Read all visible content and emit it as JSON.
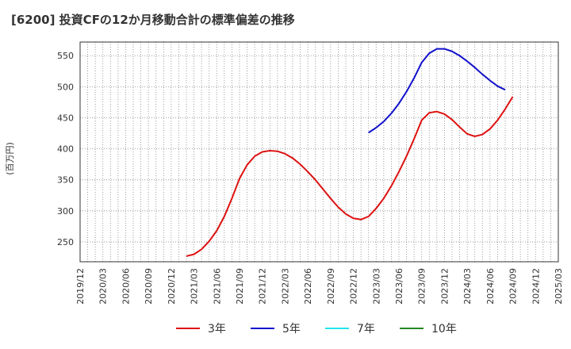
{
  "chart_data": {
    "type": "line",
    "title": "[6200]  投資CFの12か月移動合計の標準偏差の推移",
    "ylabel": "(百万円)",
    "xlabel": "",
    "x_ticks": [
      "2019/12",
      "2020/03",
      "2020/06",
      "2020/09",
      "2020/12",
      "2021/03",
      "2021/06",
      "2021/09",
      "2021/12",
      "2022/03",
      "2022/06",
      "2022/09",
      "2022/12",
      "2023/03",
      "2023/06",
      "2023/09",
      "2023/12",
      "2024/03",
      "2024/06",
      "2024/09",
      "2024/12",
      "2025/03"
    ],
    "y_ticks": [
      250,
      300,
      350,
      400,
      450,
      500,
      550
    ],
    "xlim": [
      "2019/12",
      "2025/03"
    ],
    "ylim": [
      218,
      572
    ],
    "grid": true,
    "legend_position": "bottom",
    "series": [
      {
        "name": "3年",
        "color": "#dd1111",
        "points": [
          [
            "2021/02",
            227
          ],
          [
            "2021/03",
            230
          ],
          [
            "2021/04",
            238
          ],
          [
            "2021/05",
            251
          ],
          [
            "2021/06",
            268
          ],
          [
            "2021/07",
            291
          ],
          [
            "2021/08",
            320
          ],
          [
            "2021/09",
            352
          ],
          [
            "2021/10",
            374
          ],
          [
            "2021/11",
            388
          ],
          [
            "2021/12",
            395
          ],
          [
            "2022/01",
            397
          ],
          [
            "2022/02",
            396
          ],
          [
            "2022/03",
            392
          ],
          [
            "2022/04",
            385
          ],
          [
            "2022/05",
            375
          ],
          [
            "2022/06",
            363
          ],
          [
            "2022/07",
            350
          ],
          [
            "2022/08",
            335
          ],
          [
            "2022/09",
            320
          ],
          [
            "2022/10",
            306
          ],
          [
            "2022/11",
            295
          ],
          [
            "2022/12",
            288
          ],
          [
            "2023/01",
            286
          ],
          [
            "2023/02",
            291
          ],
          [
            "2023/03",
            304
          ],
          [
            "2023/04",
            320
          ],
          [
            "2023/05",
            340
          ],
          [
            "2023/06",
            363
          ],
          [
            "2023/07",
            388
          ],
          [
            "2023/08",
            416
          ],
          [
            "2023/09",
            446
          ],
          [
            "2023/10",
            458
          ],
          [
            "2023/11",
            460
          ],
          [
            "2023/12",
            456
          ],
          [
            "2024/01",
            447
          ],
          [
            "2024/02",
            435
          ],
          [
            "2024/03",
            424
          ],
          [
            "2024/04",
            420
          ],
          [
            "2024/05",
            423
          ],
          [
            "2024/06",
            432
          ],
          [
            "2024/07",
            446
          ],
          [
            "2024/08",
            464
          ],
          [
            "2024/09",
            484
          ]
        ]
      },
      {
        "name": "5年",
        "color": "#1111cc",
        "points": [
          [
            "2023/02",
            426
          ],
          [
            "2023/03",
            434
          ],
          [
            "2023/04",
            444
          ],
          [
            "2023/05",
            457
          ],
          [
            "2023/06",
            473
          ],
          [
            "2023/07",
            492
          ],
          [
            "2023/08",
            514
          ],
          [
            "2023/09",
            539
          ],
          [
            "2023/10",
            554
          ],
          [
            "2023/11",
            561
          ],
          [
            "2023/12",
            561
          ],
          [
            "2024/01",
            557
          ],
          [
            "2024/02",
            550
          ],
          [
            "2024/03",
            541
          ],
          [
            "2024/04",
            531
          ],
          [
            "2024/05",
            520
          ],
          [
            "2024/06",
            510
          ],
          [
            "2024/07",
            501
          ],
          [
            "2024/08",
            495
          ]
        ]
      },
      {
        "name": "7年",
        "color": "#22e5f0",
        "points": []
      },
      {
        "name": "10年",
        "color": "#228822",
        "points": []
      }
    ]
  }
}
